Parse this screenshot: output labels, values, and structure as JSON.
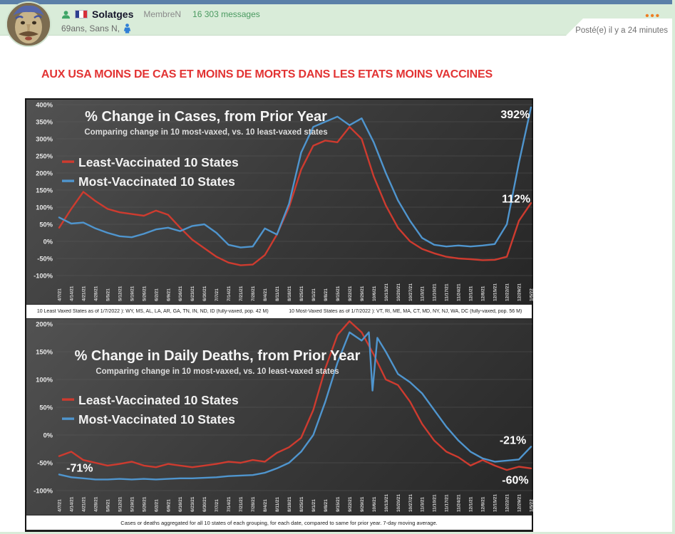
{
  "post": {
    "username": "Solatges",
    "role": "MembreN",
    "messages_count": "16 303 messages",
    "user_details": "69ans, Sans N,",
    "posted_time": "Posté(e) il y a 24 minutes",
    "menu_dots": "•••",
    "title": "AUX USA MOINS DE CAS ET MOINS DE MORTS DANS LES ETATS MOINS VACCINES"
  },
  "colors": {
    "topbar": "#5b80a8",
    "header_band": "#d9ecd9",
    "title_red": "#e23333",
    "messages_green": "#4a9a60",
    "dots_orange": "#ef7d22",
    "least_vaxed_red": "#ce3b2f",
    "most_vaxed_blue": "#4f95ce"
  },
  "footnotes": {
    "between_left": "10 Least Vaxed States as of 1/7/2022 ): WY, MS, AL, LA, AR, GA, TN, IN, ND, ID (fully-vaxed, pop. 42 M)",
    "between_right": "10 Most-Vaxed  States as of 1/7/2022 ): VT, RI, ME, MA, CT, MD, NY, NJ, WA, DC (fully-vaxed, pop. 56 M)",
    "bottom": "Cases or deaths aggregated for all 10 states of each grouping, for each date, compared to same for prior year. 7-day moving average."
  },
  "chart_data": [
    {
      "type": "line",
      "title": "% Change in Cases, from Prior Year",
      "subtitle": "Comparing change in 10 most-vaxed, vs. 10 least-vaxed states",
      "ylim": [
        -100,
        400
      ],
      "y_tick_step": 50,
      "grid": true,
      "legend_position": "upper-left",
      "x_labels": [
        "4/7/21",
        "4/14/21",
        "4/21/21",
        "4/28/21",
        "5/5/21",
        "5/12/21",
        "5/19/21",
        "5/26/21",
        "6/2/21",
        "6/9/21",
        "6/16/21",
        "6/23/21",
        "6/30/21",
        "7/7/21",
        "7/14/21",
        "7/21/21",
        "7/28/21",
        "8/4/21",
        "8/11/21",
        "8/18/21",
        "8/25/21",
        "9/1/21",
        "9/8/21",
        "9/15/21",
        "9/22/21",
        "9/29/21",
        "10/6/21",
        "10/13/21",
        "10/20/21",
        "10/27/21",
        "11/3/21",
        "11/10/21",
        "11/17/21",
        "11/24/21",
        "12/1/21",
        "12/8/21",
        "12/15/21",
        "12/22/21",
        "12/29/21",
        "1/5/22"
      ],
      "series": [
        {
          "name": "Least-Vaccinated 10 States",
          "color": "#ce3b2f",
          "values": [
            40,
            95,
            145,
            118,
            95,
            85,
            80,
            75,
            90,
            78,
            40,
            5,
            -20,
            -45,
            -62,
            -70,
            -68,
            -40,
            20,
            100,
            210,
            280,
            295,
            290,
            335,
            300,
            190,
            105,
            40,
            0,
            -22,
            -35,
            -45,
            -50,
            -52,
            -55,
            -54,
            -45,
            60,
            112
          ]
        },
        {
          "name": "Most-Vaccinated 10 States",
          "color": "#4f95ce",
          "values": [
            70,
            52,
            55,
            38,
            25,
            15,
            12,
            22,
            35,
            40,
            30,
            45,
            50,
            25,
            -10,
            -18,
            -15,
            38,
            20,
            110,
            260,
            335,
            350,
            365,
            340,
            360,
            290,
            200,
            120,
            60,
            10,
            -10,
            -15,
            -12,
            -15,
            -12,
            -8,
            50,
            230,
            392
          ]
        }
      ],
      "annotations": [
        {
          "text": "392%",
          "week": 38.9,
          "value": 360,
          "anchor": "end"
        },
        {
          "text": "112%",
          "week": 38.95,
          "value": 114,
          "anchor": "end"
        }
      ]
    },
    {
      "type": "line",
      "title": "% Change in Daily Deaths, from Prior Year",
      "subtitle": "Comparing change in 10 most-vaxed, vs. 10 least-vaxed states",
      "ylim": [
        -100,
        200
      ],
      "y_tick_step": 50,
      "grid": true,
      "legend_position": "upper-left",
      "x_labels": [
        "4/7/21",
        "4/14/21",
        "4/21/21",
        "4/28/21",
        "5/5/21",
        "5/12/21",
        "5/19/21",
        "5/26/21",
        "6/2/21",
        "6/9/21",
        "6/16/21",
        "6/23/21",
        "6/30/21",
        "7/7/21",
        "7/14/21",
        "7/21/21",
        "7/28/21",
        "8/4/21",
        "8/11/21",
        "8/18/21",
        "8/25/21",
        "9/1/21",
        "9/8/21",
        "9/15/21",
        "9/22/21",
        "9/29/21",
        "10/6/21",
        "10/13/21",
        "10/20/21",
        "10/27/21",
        "11/3/21",
        "11/10/21",
        "11/17/21",
        "11/24/21",
        "12/1/21",
        "12/8/21",
        "12/15/21",
        "12/22/21",
        "12/29/21",
        "1/5/22"
      ],
      "series": [
        {
          "name": "Least-Vaccinated 10 States",
          "color": "#ce3b2f",
          "values": [
            -38,
            -30,
            -45,
            -50,
            -55,
            -52,
            -48,
            -55,
            -58,
            -52,
            -55,
            -58,
            -55,
            -52,
            -48,
            -50,
            -45,
            -48,
            -32,
            -22,
            -5,
            45,
            120,
            180,
            205,
            185,
            145,
            100,
            90,
            60,
            20,
            -10,
            -30,
            -40,
            -55,
            -45,
            -55,
            -63,
            -57,
            -60
          ]
        },
        {
          "name": "Most-Vaccinated 10 States",
          "color": "#4f95ce",
          "x": [
            0,
            1,
            2,
            3,
            4,
            5,
            6,
            7,
            8,
            9,
            10,
            11,
            12,
            13,
            14,
            15,
            16,
            17,
            18,
            19,
            20,
            21,
            22,
            23,
            24,
            25,
            25.6,
            25.9,
            26.3,
            27,
            28,
            29,
            30,
            31,
            32,
            33,
            34,
            35,
            36,
            37,
            38,
            39
          ],
          "values": [
            -71,
            -76,
            -78,
            -80,
            -80,
            -79,
            -80,
            -79,
            -80,
            -79,
            -78,
            -78,
            -77,
            -76,
            -74,
            -73,
            -72,
            -68,
            -60,
            -50,
            -30,
            0,
            60,
            130,
            185,
            170,
            185,
            80,
            175,
            150,
            110,
            95,
            75,
            45,
            15,
            -10,
            -30,
            -42,
            -48,
            -46,
            -44,
            -21
          ]
        }
      ],
      "annotations": [
        {
          "text": "-71%",
          "week": 0.6,
          "value": -66,
          "anchor": "start"
        },
        {
          "text": "-21%",
          "week": 38.6,
          "value": -16,
          "anchor": "end"
        },
        {
          "text": "-60%",
          "week": 38.8,
          "value": -88,
          "anchor": "end"
        }
      ]
    }
  ]
}
